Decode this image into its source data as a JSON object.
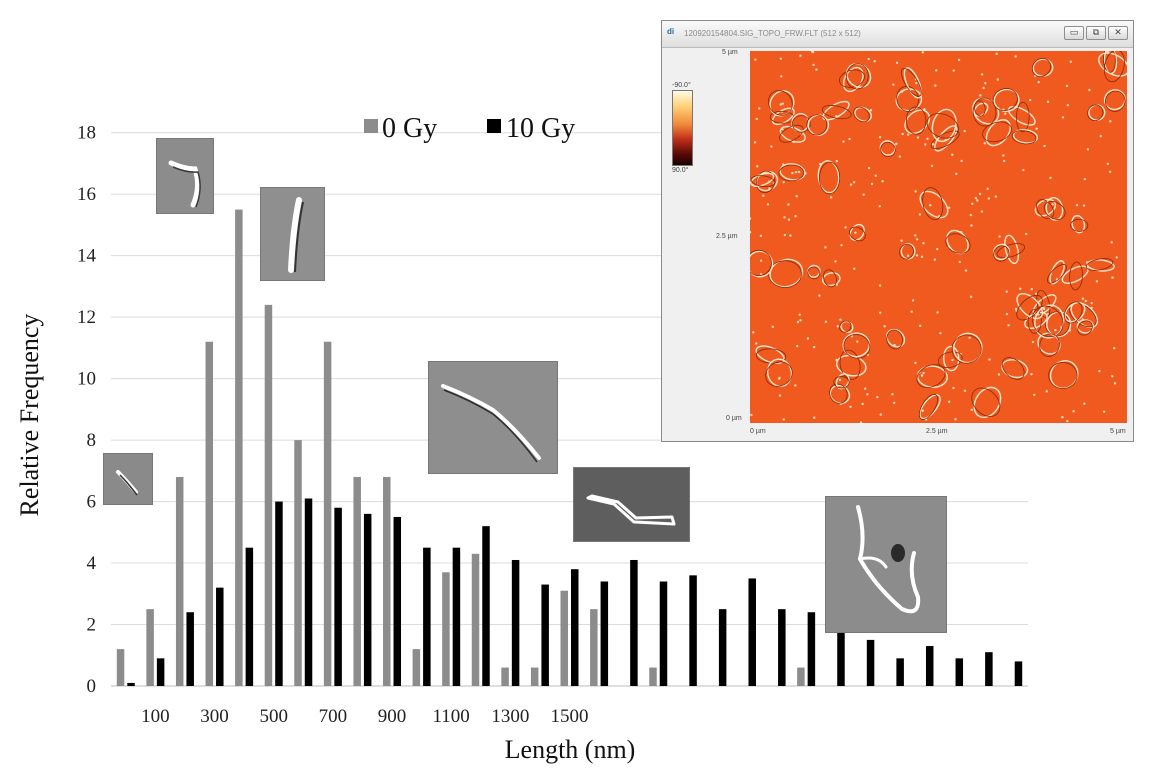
{
  "chart_data": {
    "type": "bar",
    "xlabel": "Length (nm)",
    "ylabel": "Relative Frequency",
    "ylim": [
      0,
      19
    ],
    "yticks": [
      0,
      2,
      4,
      6,
      8,
      10,
      12,
      14,
      16,
      18
    ],
    "xtick_labels": [
      "100",
      "300",
      "500",
      "700",
      "900",
      "1100",
      "1300",
      "1500"
    ],
    "grid": true,
    "legend_position": "top",
    "x": [
      50,
      100,
      150,
      200,
      250,
      300,
      350,
      400,
      450,
      500,
      550,
      600,
      650,
      700,
      750,
      800,
      850,
      900,
      950,
      1000,
      1050,
      1100,
      1150,
      1200,
      1250,
      1300,
      1350,
      1400,
      1450,
      1500,
      1550
    ],
    "series": [
      {
        "name": "0 Gy",
        "color": "#8c8c8c",
        "values": [
          1.2,
          2.5,
          6.8,
          11.2,
          15.5,
          12.4,
          8.0,
          11.2,
          6.8,
          6.8,
          1.2,
          3.7,
          4.3,
          0.6,
          0.6,
          3.1,
          2.5,
          0,
          0.6,
          0,
          0,
          0,
          0,
          0.6,
          0,
          0,
          0,
          0,
          0,
          0,
          0
        ]
      },
      {
        "name": "10 Gy",
        "color": "#000000",
        "values": [
          0.1,
          0.9,
          2.4,
          3.2,
          4.5,
          6.0,
          6.1,
          5.8,
          5.6,
          5.5,
          4.5,
          4.5,
          5.2,
          4.1,
          3.3,
          3.8,
          3.4,
          4.1,
          3.4,
          3.6,
          2.5,
          3.5,
          2.5,
          2.4,
          2.5,
          1.5,
          0.9,
          1.3,
          0.9,
          1.1,
          0.8
        ]
      }
    ]
  },
  "inset": {
    "title": "120920154804.SIG_TOPO_FRW.FLT (512 x 512)",
    "app_icon": "di",
    "colorbar_top": "-90.0°",
    "colorbar_bottom": "90.0°",
    "y_labels": [
      "5 µm",
      "2.5 µm",
      "0 µm"
    ],
    "x_labels": [
      "0 µm",
      "2.5 µm",
      "5 µm"
    ],
    "buttons": [
      "minimize-icon",
      "maximize-icon",
      "close-icon"
    ],
    "image_color": "#f05a1e"
  }
}
